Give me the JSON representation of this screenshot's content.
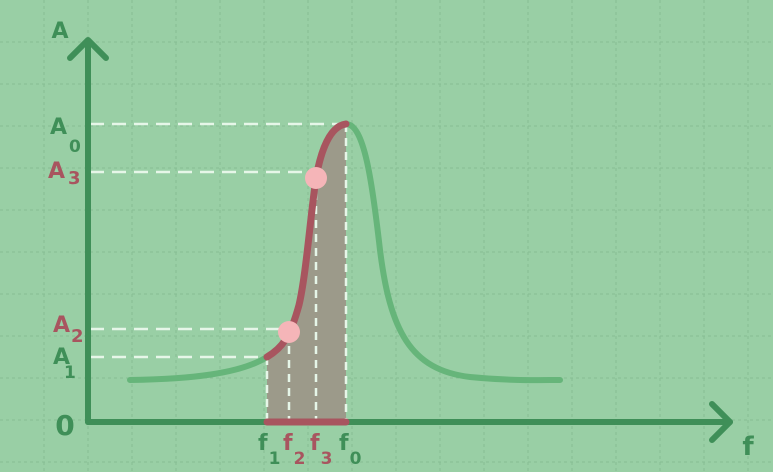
{
  "diagram": {
    "y_axis_label": "A",
    "x_axis_label": "f",
    "origin_label": "0",
    "y_levels": [
      {
        "id": "A0",
        "base": "A",
        "sub": "0",
        "tone": "green"
      },
      {
        "id": "A3",
        "base": "A",
        "sub": "3",
        "tone": "red"
      },
      {
        "id": "A2",
        "base": "A",
        "sub": "2",
        "tone": "red"
      },
      {
        "id": "A1",
        "base": "A",
        "sub": "1",
        "tone": "green"
      }
    ],
    "x_marks": [
      {
        "id": "f1",
        "base": "f",
        "sub": "1",
        "tone": "green"
      },
      {
        "id": "f2",
        "base": "f",
        "sub": "2",
        "tone": "red"
      },
      {
        "id": "f3",
        "base": "f",
        "sub": "3",
        "tone": "red"
      },
      {
        "id": "f0",
        "base": "f",
        "sub": "0",
        "tone": "green"
      }
    ],
    "colors": {
      "background": "#99cfa5",
      "grid": "#86be93",
      "axis": "#3f8f58",
      "curve": "#66b57a",
      "highlight": "#a8555f",
      "shaded_region": "#9c9a8a",
      "guide_dash": "#e6f6e8",
      "point": "#f5b5b8",
      "label_green": "#3f8f58",
      "label_red": "#a8555f"
    }
  }
}
